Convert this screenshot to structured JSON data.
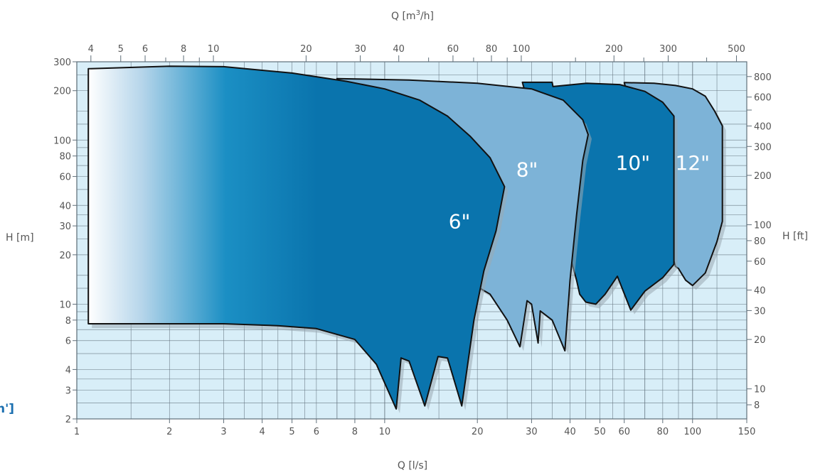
{
  "chart_data": {
    "type": "area",
    "title": "",
    "x_bottom": {
      "label": "Q [l/s]",
      "scale": "log",
      "range": [
        1,
        150
      ],
      "ticks": [
        "1",
        "2",
        "3",
        "4",
        "5",
        "6",
        "8",
        "10",
        "20",
        "30",
        "40",
        "50",
        "60",
        "80",
        "100",
        "150"
      ]
    },
    "x_top": {
      "label_prefix": "Q [m",
      "label_sup": "3",
      "label_suffix": "/h]",
      "scale": "log",
      "ticks": [
        "4",
        "5",
        "6",
        "8",
        "10",
        "20",
        "30",
        "40",
        "60",
        "80",
        "100",
        "200",
        "300",
        "500"
      ]
    },
    "y_left": {
      "label": "H [m]",
      "scale": "log",
      "range": [
        2,
        300
      ],
      "ticks": [
        "2",
        "3",
        "4",
        "6",
        "8",
        "10",
        "20",
        "30",
        "40",
        "60",
        "80",
        "100",
        "200",
        "300"
      ]
    },
    "y_right": {
      "label": "H [ft]",
      "scale": "log",
      "ticks": [
        "8",
        "10",
        "20",
        "30",
        "40",
        "60",
        "80",
        "100",
        "200",
        "300",
        "400",
        "600",
        "800"
      ]
    },
    "series": [
      {
        "name": "6\"",
        "color": "#0a74ad",
        "outline": [
          [
            1.09,
            272
          ],
          [
            2.0,
            282
          ],
          [
            3.0,
            280
          ],
          [
            5.0,
            256
          ],
          [
            7.5,
            228
          ],
          [
            10,
            205
          ],
          [
            13,
            175
          ],
          [
            16,
            140
          ],
          [
            19,
            105
          ],
          [
            22,
            78
          ],
          [
            24.5,
            52
          ],
          [
            23,
            28
          ],
          [
            21,
            16
          ],
          [
            19.5,
            8
          ],
          [
            17.8,
            2.4
          ],
          [
            16,
            4.7
          ],
          [
            14.9,
            4.8
          ],
          [
            13.5,
            2.4
          ],
          [
            12,
            4.5
          ],
          [
            11.3,
            4.7
          ],
          [
            10.9,
            2.3
          ],
          [
            9.4,
            4.3
          ],
          [
            8,
            6.1
          ],
          [
            6,
            7.1
          ],
          [
            4.5,
            7.4
          ],
          [
            3,
            7.6
          ],
          [
            1.6,
            7.6
          ],
          [
            1.09,
            7.6
          ],
          [
            1.09,
            272
          ]
        ]
      },
      {
        "name": "8\"",
        "color": "#7db3d7",
        "outline": [
          [
            7.0,
            237
          ],
          [
            12,
            232
          ],
          [
            20,
            222
          ],
          [
            30,
            205
          ],
          [
            38,
            175
          ],
          [
            44,
            133
          ],
          [
            45.8,
            108
          ],
          [
            44,
            75
          ],
          [
            42,
            35
          ],
          [
            40,
            14
          ],
          [
            38.5,
            5.2
          ],
          [
            35,
            8
          ],
          [
            32,
            9.1
          ],
          [
            31.5,
            5.8
          ],
          [
            30,
            10
          ],
          [
            29,
            10.5
          ],
          [
            27.5,
            5.5
          ],
          [
            25,
            8
          ],
          [
            22,
            11.5
          ],
          [
            19,
            13.5
          ],
          [
            15,
            15
          ],
          [
            7.0,
            237
          ]
        ]
      },
      {
        "name": "10\"",
        "color": "#0a74ad",
        "outline": [
          [
            28.0,
            225
          ],
          [
            35,
            225
          ],
          [
            35.2,
            212
          ],
          [
            45.3,
            222
          ],
          [
            58,
            218
          ],
          [
            70,
            198
          ],
          [
            80,
            170
          ],
          [
            87,
            140
          ],
          [
            87,
            17.5
          ],
          [
            80,
            14.5
          ],
          [
            70,
            12
          ],
          [
            63,
            9.2
          ],
          [
            57,
            14.8
          ],
          [
            52,
            11.5
          ],
          [
            48.5,
            10
          ],
          [
            45,
            10.3
          ],
          [
            43,
            11.5
          ],
          [
            42,
            14
          ],
          [
            28.0,
            225
          ]
        ]
      },
      {
        "name": "12\"",
        "color": "#7db3d7",
        "outline": [
          [
            60,
            224
          ],
          [
            75,
            222
          ],
          [
            88,
            215
          ],
          [
            100,
            205
          ],
          [
            110,
            185
          ],
          [
            118,
            150
          ],
          [
            125,
            122
          ],
          [
            125,
            32
          ],
          [
            120,
            24
          ],
          [
            110,
            15.5
          ],
          [
            100,
            13
          ],
          [
            95,
            14
          ],
          [
            90,
            16.5
          ],
          [
            88,
            17
          ],
          [
            60,
            224
          ]
        ]
      }
    ],
    "annotations": [
      "h']"
    ]
  },
  "colors": {
    "grid_bg": "#d8eef8",
    "grid_line": "#5f6f7a",
    "dark_blue": "#0a74ad",
    "light_blue": "#7db3d7",
    "gradient_start": "#ffffff"
  }
}
